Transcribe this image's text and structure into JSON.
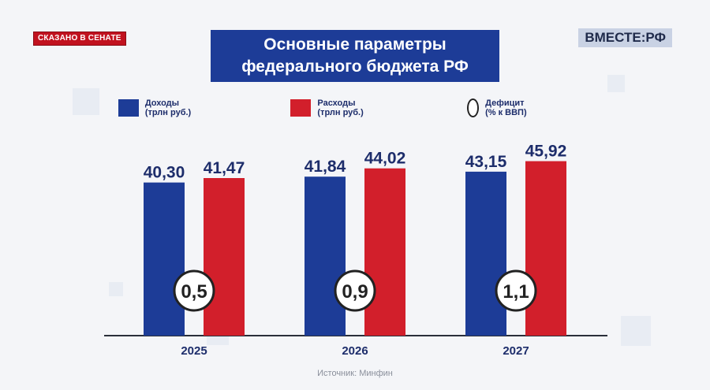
{
  "badge": "СКАЗАНО В СЕНАТЕ",
  "logo": "ВМЕСТЕ:РФ",
  "title_line1": "Основные параметры",
  "title_line2": "федерального бюджета РФ",
  "source": "Источник: Минфин",
  "colors": {
    "income": "#1d3c97",
    "expense": "#d21f2b",
    "title_bg": "#1d3c97"
  },
  "chart_data": {
    "type": "bar",
    "categories": [
      "2025",
      "2026",
      "2027"
    ],
    "series": [
      {
        "name": "Доходы (трлн руб.)",
        "values": [
          40.3,
          41.84,
          43.15
        ],
        "labels": [
          "40,30",
          "41,84",
          "43,15"
        ]
      },
      {
        "name": "Расходы (трлн руб.)",
        "values": [
          41.47,
          44.02,
          45.92
        ],
        "labels": [
          "41,47",
          "44,02",
          "45,92"
        ]
      }
    ],
    "deficit": {
      "name": "Дефицит (% к ВВП)",
      "values": [
        0.5,
        0.9,
        1.1
      ],
      "labels": [
        "0,5",
        "0,9",
        "1,1"
      ]
    },
    "legend_position": "top",
    "grid": false
  }
}
